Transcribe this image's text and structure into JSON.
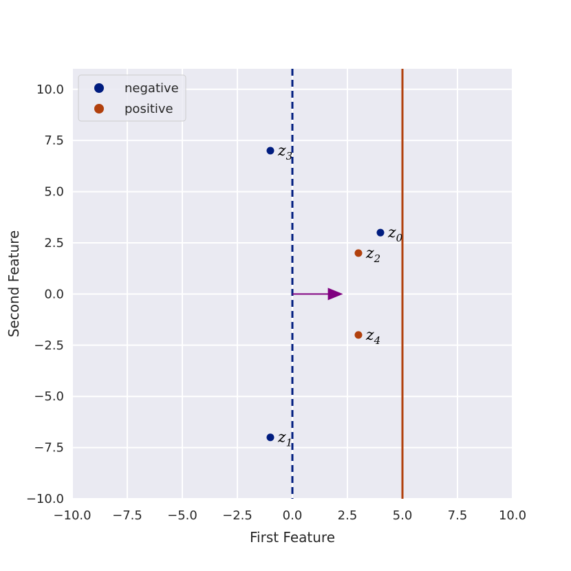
{
  "chart_data": {
    "type": "scatter",
    "xlabel": "First Feature",
    "ylabel": "Second Feature",
    "xlim": [
      -10,
      10
    ],
    "ylim": [
      -10,
      11
    ],
    "xticks": [
      -10,
      -7.5,
      -5,
      -2.5,
      0,
      2.5,
      5,
      7.5,
      10
    ],
    "yticks": [
      -10,
      -7.5,
      -5,
      -2.5,
      0,
      2.5,
      5,
      7.5,
      10
    ],
    "xtick_labels": [
      "−10.0",
      "−7.5",
      "−5.0",
      "−2.5",
      "0.0",
      "2.5",
      "5.0",
      "7.5",
      "10.0"
    ],
    "ytick_labels": [
      "−10.0",
      "−7.5",
      "−5.0",
      "−2.5",
      "0.0",
      "2.5",
      "5.0",
      "7.5",
      "10.0"
    ],
    "grid": true,
    "legend_position": "top-left",
    "series": [
      {
        "name": "negative",
        "color": "#001c7f",
        "points": [
          {
            "x": 4,
            "y": 3,
            "label": "z",
            "sub": "0"
          },
          {
            "x": -1,
            "y": -7,
            "label": "z",
            "sub": "1"
          },
          {
            "x": -1,
            "y": 7,
            "label": "z",
            "sub": "3"
          }
        ]
      },
      {
        "name": "positive",
        "color": "#b1400d",
        "points": [
          {
            "x": 3,
            "y": 2,
            "label": "z",
            "sub": "2"
          },
          {
            "x": 3,
            "y": -2,
            "label": "z",
            "sub": "4"
          }
        ]
      }
    ],
    "vertical_lines": [
      {
        "x": 0,
        "color": "#001c7f",
        "style": "dashed"
      },
      {
        "x": 5,
        "color": "#b1400d",
        "style": "solid"
      }
    ],
    "arrow": {
      "x0": 0,
      "y0": 0,
      "x1": 2.3,
      "y1": 0,
      "color": "#800080"
    },
    "background_color": "#eaeaf2"
  }
}
